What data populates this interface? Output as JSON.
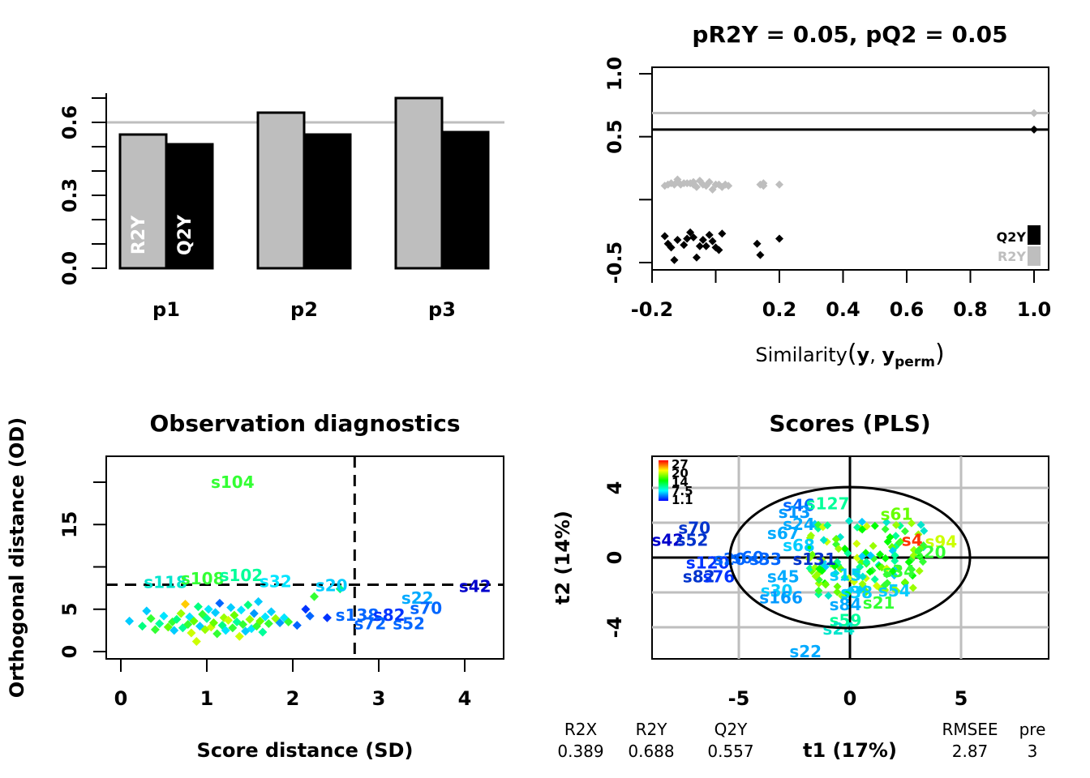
{
  "chart_data": [
    {
      "type": "bar",
      "categories": [
        "p1",
        "p2",
        "p3"
      ],
      "series": [
        {
          "name": "R2Y",
          "values": [
            0.55,
            0.64,
            0.7
          ],
          "color": "#bebebe"
        },
        {
          "name": "Q2Y",
          "values": [
            0.51,
            0.55,
            0.56
          ],
          "color": "#000000"
        }
      ],
      "ylim": [
        0,
        0.72
      ],
      "yticks": [
        0.0,
        0.3,
        0.6
      ],
      "reference_line": 0.5
    },
    {
      "type": "scatter",
      "title": "pR2Y = 0.05, pQ2 = 0.05",
      "xlabel_plain": "Similarity",
      "xlabel_y1": "y",
      "xlabel_comma": ",",
      "xlabel_y2": "y",
      "xlabel_sub": "perm",
      "xlim": [
        -0.2,
        1.0
      ],
      "ylim": [
        -0.5,
        1.0
      ],
      "xticks": [
        "-0.2",
        "0.2",
        "0.4",
        "0.6",
        "0.8",
        "1.0"
      ],
      "yticks": [
        "-0.5",
        "0.5",
        "1.0"
      ],
      "series": [
        {
          "name": "R2Y",
          "color": "#bebebe",
          "hline": 0.688,
          "points": [
            [
              -0.16,
              0.11
            ],
            [
              -0.15,
              0.12
            ],
            [
              -0.14,
              0.13
            ],
            [
              -0.13,
              0.12
            ],
            [
              -0.12,
              0.14
            ],
            [
              -0.12,
              0.16
            ],
            [
              -0.11,
              0.12
            ],
            [
              -0.1,
              0.13
            ],
            [
              -0.09,
              0.13
            ],
            [
              -0.08,
              0.13
            ],
            [
              -0.07,
              0.14
            ],
            [
              -0.07,
              0.12
            ],
            [
              -0.06,
              0.1
            ],
            [
              -0.05,
              0.15
            ],
            [
              -0.04,
              0.12
            ],
            [
              -0.03,
              0.11
            ],
            [
              -0.02,
              0.14
            ],
            [
              -0.01,
              0.08
            ],
            [
              0.0,
              0.12
            ],
            [
              0.01,
              0.12
            ],
            [
              0.02,
              0.1
            ],
            [
              0.03,
              0.12
            ],
            [
              0.04,
              0.11
            ],
            [
              0.14,
              0.12
            ],
            [
              0.15,
              0.13
            ],
            [
              0.15,
              0.11
            ],
            [
              0.2,
              0.12
            ],
            [
              1.0,
              0.688
            ]
          ]
        },
        {
          "name": "Q2Y",
          "color": "#000000",
          "hline": 0.557,
          "points": [
            [
              -0.16,
              -0.29
            ],
            [
              -0.15,
              -0.35
            ],
            [
              -0.14,
              -0.38
            ],
            [
              -0.13,
              -0.48
            ],
            [
              -0.12,
              -0.32
            ],
            [
              -0.1,
              -0.36
            ],
            [
              -0.09,
              -0.31
            ],
            [
              -0.08,
              -0.26
            ],
            [
              -0.07,
              -0.3
            ],
            [
              -0.06,
              -0.46
            ],
            [
              -0.05,
              -0.37
            ],
            [
              -0.04,
              -0.32
            ],
            [
              -0.03,
              -0.37
            ],
            [
              -0.02,
              -0.28
            ],
            [
              -0.01,
              -0.33
            ],
            [
              0.0,
              -0.38
            ],
            [
              0.01,
              -0.4
            ],
            [
              0.02,
              -0.27
            ],
            [
              0.13,
              -0.35
            ],
            [
              0.14,
              -0.44
            ],
            [
              0.2,
              -0.31
            ],
            [
              1.0,
              0.557
            ]
          ]
        }
      ],
      "legend": [
        "Q2Y",
        "R2Y"
      ],
      "legend_position": "bottom-right"
    },
    {
      "type": "scatter",
      "title": "Observation diagnostics",
      "xlabel": "Score distance (SD)",
      "ylabel": "Orthogonal distance (OD)",
      "xlim": [
        -0.2,
        4.4
      ],
      "ylim": [
        -1,
        23
      ],
      "xticks": [
        "0",
        "1",
        "2",
        "3",
        "4"
      ],
      "yticks": [
        "0",
        "5",
        "15"
      ],
      "cutoff_sd": 2.72,
      "cutoff_od": 7.9,
      "points": [
        [
          0.1,
          3.6,
          "#00ccff"
        ],
        [
          0.25,
          3.0,
          "#00ff7f"
        ],
        [
          0.3,
          4.8,
          "#00ccff"
        ],
        [
          0.35,
          3.9,
          "#33ff33"
        ],
        [
          0.4,
          2.6,
          "#33ff33"
        ],
        [
          0.45,
          3.3,
          "#00ff99"
        ],
        [
          0.5,
          4.2,
          "#00e5ff"
        ],
        [
          0.55,
          2.9,
          "#66ff00"
        ],
        [
          0.6,
          3.5,
          "#33ff33"
        ],
        [
          0.62,
          2.5,
          "#00ccff"
        ],
        [
          0.65,
          3.8,
          "#00ff7f"
        ],
        [
          0.7,
          4.5,
          "#99ff00"
        ],
        [
          0.72,
          2.8,
          "#00ff99"
        ],
        [
          0.75,
          5.6,
          "#ffcc00"
        ],
        [
          0.78,
          3.2,
          "#33ff33"
        ],
        [
          0.8,
          4.1,
          "#00e5ff"
        ],
        [
          0.82,
          2.2,
          "#ccff00"
        ],
        [
          0.85,
          3.6,
          "#66ff00"
        ],
        [
          0.88,
          1.2,
          "#ccff00"
        ],
        [
          0.9,
          5.3,
          "#00ff7f"
        ],
        [
          0.92,
          3.0,
          "#00ccff"
        ],
        [
          0.95,
          4.4,
          "#33ff33"
        ],
        [
          0.98,
          2.6,
          "#99ff00"
        ],
        [
          1.0,
          3.9,
          "#00ff99"
        ],
        [
          1.02,
          5.0,
          "#00e5ff"
        ],
        [
          1.05,
          2.9,
          "#ccff00"
        ],
        [
          1.08,
          3.4,
          "#66ff00"
        ],
        [
          1.1,
          4.6,
          "#00ccff"
        ],
        [
          1.12,
          2.1,
          "#33ff33"
        ],
        [
          1.15,
          5.7,
          "#0066ff"
        ],
        [
          1.18,
          3.1,
          "#00ff7f"
        ],
        [
          1.2,
          4.0,
          "#99ff00"
        ],
        [
          1.22,
          2.5,
          "#00e5ff"
        ],
        [
          1.25,
          3.7,
          "#ccff00"
        ],
        [
          1.28,
          5.2,
          "#00ccff"
        ],
        [
          1.3,
          2.8,
          "#33ff33"
        ],
        [
          1.32,
          4.3,
          "#66ff00"
        ],
        [
          1.35,
          3.5,
          "#00ff99"
        ],
        [
          1.38,
          1.8,
          "#ccff00"
        ],
        [
          1.4,
          4.9,
          "#00e5ff"
        ],
        [
          1.42,
          3.2,
          "#33ff33"
        ],
        [
          1.45,
          2.4,
          "#00ccff"
        ],
        [
          1.48,
          5.5,
          "#00ff7f"
        ],
        [
          1.5,
          3.8,
          "#99ff00"
        ],
        [
          1.52,
          2.7,
          "#00e5ff"
        ],
        [
          1.55,
          4.5,
          "#0099ff"
        ],
        [
          1.58,
          3.0,
          "#33ff33"
        ],
        [
          1.6,
          5.9,
          "#00ccff"
        ],
        [
          1.62,
          3.6,
          "#66ff00"
        ],
        [
          1.65,
          2.3,
          "#00ff99"
        ],
        [
          1.68,
          4.1,
          "#00e5ff"
        ],
        [
          1.72,
          3.3,
          "#33ff33"
        ],
        [
          1.75,
          4.7,
          "#00ccff"
        ],
        [
          1.8,
          3.9,
          "#99ff00"
        ],
        [
          1.85,
          3.4,
          "#0099ff"
        ],
        [
          1.9,
          4.0,
          "#00e5ff"
        ],
        [
          1.95,
          3.5,
          "#33ff33"
        ],
        [
          2.05,
          3.1,
          "#0066ff"
        ],
        [
          2.15,
          5.0,
          "#0033ff"
        ],
        [
          2.2,
          4.2,
          "#0066ff"
        ],
        [
          2.25,
          6.5,
          "#33ff33"
        ],
        [
          2.4,
          4.0,
          "#0033ff"
        ],
        [
          2.55,
          7.4,
          "#00ff7f"
        ]
      ],
      "labels": [
        {
          "text": "s104",
          "x": 1.3,
          "y": 20.0,
          "color": "#33ff33"
        },
        {
          "text": "s118",
          "x": 0.52,
          "y": 8.2,
          "color": "#00e5cc"
        },
        {
          "text": "s108",
          "x": 0.95,
          "y": 8.6,
          "color": "#33ff33"
        },
        {
          "text": "s102",
          "x": 1.4,
          "y": 9.0,
          "color": "#00ff99"
        },
        {
          "text": "s32",
          "x": 1.8,
          "y": 8.3,
          "color": "#00e5ff"
        },
        {
          "text": "s20",
          "x": 2.45,
          "y": 7.8,
          "color": "#00ccff"
        },
        {
          "text": "s42",
          "x": 4.12,
          "y": 7.7,
          "color": "#0000cc"
        },
        {
          "text": "s22",
          "x": 3.45,
          "y": 6.3,
          "color": "#00aaff"
        },
        {
          "text": "s70",
          "x": 3.55,
          "y": 5.1,
          "color": "#0066ff"
        },
        {
          "text": "s138",
          "x": 2.75,
          "y": 4.3,
          "color": "#0066ff"
        },
        {
          "text": "s82",
          "x": 3.12,
          "y": 4.3,
          "color": "#0033ff"
        },
        {
          "text": "s72",
          "x": 2.9,
          "y": 3.3,
          "color": "#0066ff"
        },
        {
          "text": "s52",
          "x": 3.35,
          "y": 3.3,
          "color": "#0066ff"
        }
      ]
    },
    {
      "type": "scatter",
      "title": "Scores (PLS)",
      "xlabel": "t1 (17%)",
      "ylabel": "t2 (14%)",
      "xlim": [
        -9,
        9
      ],
      "ylim": [
        -5.8,
        5.8
      ],
      "xticks": [
        "-5",
        "0",
        "5"
      ],
      "yticks": [
        "-4",
        "0",
        "4"
      ],
      "colorbar_labels": [
        "27",
        "20",
        "14",
        "7.5",
        "1.1"
      ],
      "labels": [
        {
          "text": "s70",
          "x": -7.0,
          "y": 1.7,
          "color": "#0033cc"
        },
        {
          "text": "s42",
          "x": -8.2,
          "y": 1.0,
          "color": "#0000cc"
        },
        {
          "text": "s52",
          "x": -7.1,
          "y": 1.0,
          "color": "#0033cc"
        },
        {
          "text": "s120",
          "x": -6.4,
          "y": -0.3,
          "color": "#0033ff"
        },
        {
          "text": "s20",
          "x": -5.4,
          "y": -0.1,
          "color": "#0066ff"
        },
        {
          "text": "s60",
          "x": -4.6,
          "y": 0.0,
          "color": "#0066ff"
        },
        {
          "text": "s82",
          "x": -6.8,
          "y": -1.1,
          "color": "#0033cc"
        },
        {
          "text": "s76",
          "x": -5.9,
          "y": -1.1,
          "color": "#0033ff"
        },
        {
          "text": "s46",
          "x": -2.3,
          "y": 3.0,
          "color": "#0066ff"
        },
        {
          "text": "s127",
          "x": -1.0,
          "y": 3.1,
          "color": "#00ff99"
        },
        {
          "text": "s13",
          "x": -2.5,
          "y": 2.6,
          "color": "#0099ff"
        },
        {
          "text": "s61",
          "x": 2.1,
          "y": 2.5,
          "color": "#66ff00"
        },
        {
          "text": "s24",
          "x": -2.3,
          "y": 1.9,
          "color": "#00aaff"
        },
        {
          "text": "s67",
          "x": -3.0,
          "y": 1.4,
          "color": "#00aaff"
        },
        {
          "text": "s68",
          "x": -2.3,
          "y": 0.7,
          "color": "#00ccff"
        },
        {
          "text": "s33",
          "x": -3.8,
          "y": -0.1,
          "color": "#0066ff"
        },
        {
          "text": "s131",
          "x": -1.6,
          "y": -0.1,
          "color": "#0033cc"
        },
        {
          "text": "s4",
          "x": 2.8,
          "y": 1.0,
          "color": "#ff3300"
        },
        {
          "text": "s94",
          "x": 4.1,
          "y": 0.9,
          "color": "#ccff00"
        },
        {
          "text": "s20",
          "x": 3.6,
          "y": 0.3,
          "color": "#33ff33"
        },
        {
          "text": "s45",
          "x": -3.0,
          "y": -1.1,
          "color": "#00aaff"
        },
        {
          "text": "s15",
          "x": -0.2,
          "y": -1.0,
          "color": "#00ccff"
        },
        {
          "text": "s34",
          "x": 2.2,
          "y": -0.8,
          "color": "#33ff33"
        },
        {
          "text": "s30",
          "x": -3.3,
          "y": -1.9,
          "color": "#00ccff"
        },
        {
          "text": "s166",
          "x": -3.1,
          "y": -2.3,
          "color": "#0099ff"
        },
        {
          "text": "s54",
          "x": 2.0,
          "y": -1.9,
          "color": "#00ccff"
        },
        {
          "text": "s84",
          "x": -0.2,
          "y": -2.7,
          "color": "#00aaff"
        },
        {
          "text": "s21",
          "x": 1.3,
          "y": -2.6,
          "color": "#33ff33"
        },
        {
          "text": "s38",
          "x": 0.3,
          "y": -2.0,
          "color": "#00ccff"
        },
        {
          "text": "s59",
          "x": -0.2,
          "y": -3.6,
          "color": "#00ff99"
        },
        {
          "text": "s24",
          "x": -0.5,
          "y": -4.1,
          "color": "#00e5cc"
        },
        {
          "text": "s22",
          "x": -2.0,
          "y": -5.4,
          "color": "#00aaff"
        }
      ],
      "stats_headers": [
        "R2X",
        "R2Y",
        "Q2Y",
        "RMSEE",
        "pre"
      ],
      "stats_values": [
        "0.389",
        "0.688",
        "0.557",
        "2.87",
        "3"
      ]
    }
  ]
}
